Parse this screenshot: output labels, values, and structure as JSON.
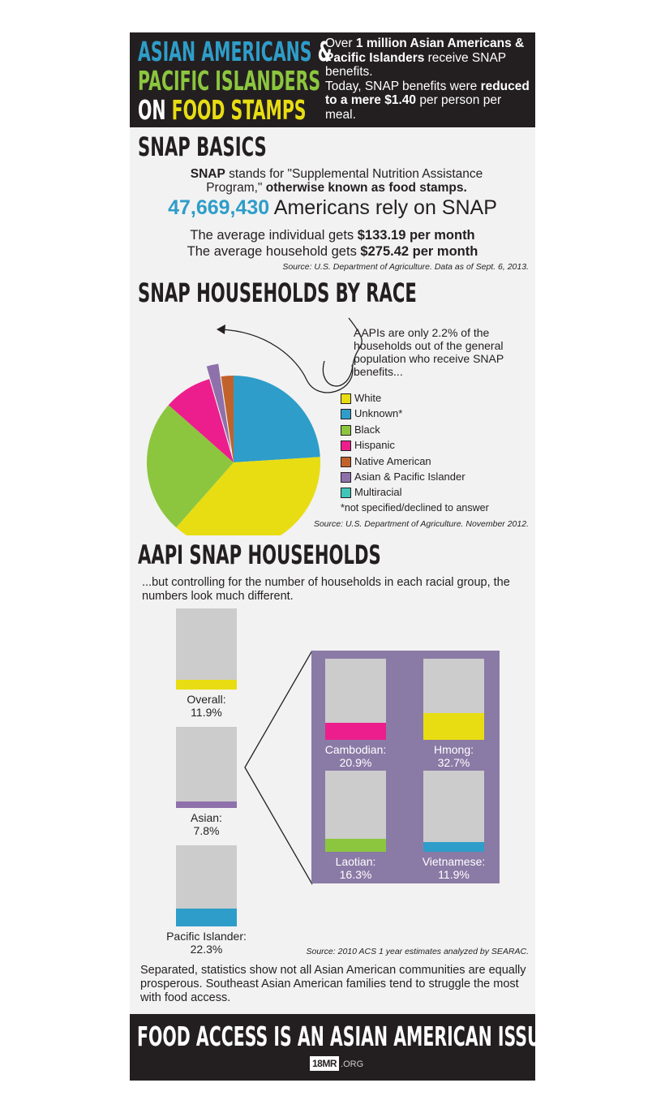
{
  "header": {
    "title_line1_a": "ASIAN AMERICANS",
    "title_line1_b": "&",
    "title_line2": "PACIFIC ISLANDERS",
    "title_line3_a": "ON",
    "title_line3_b": "FOOD STAMPS",
    "blurb_1": "Over ",
    "blurb_2": "1 million Asian Americans & Pacific Islanders",
    "blurb_3": " receive SNAP benefits.",
    "blurb_4": "Today, SNAP benefits were ",
    "blurb_5": "reduced to a mere $1.40",
    "blurb_6": " per person per meal."
  },
  "basics": {
    "title": "SNAP BASICS",
    "def_1": "SNAP",
    "def_2": " stands for \"Supplemental Nutrition Assistance Program,\" ",
    "def_3": "otherwise known as food stamps.",
    "count": "47,669,430",
    "count_text": " Americans rely on SNAP",
    "indiv_1": "The average individual gets ",
    "indiv_2": "$133.19 per month",
    "house_1": "The average household gets ",
    "house_2": "$275.42 per month",
    "source": "Source: U.S. Department of Agriculture. Data as of Sept. 6, 2013."
  },
  "race": {
    "title": "SNAP HOUSEHOLDS BY RACE",
    "annotation": "AAPIs are only 2.2% of the households out of the general population who receive SNAP benefits...",
    "footnote": "*not specified/declined to answer",
    "source": "Source: U.S. Department of Agriculture. November 2012."
  },
  "aapi": {
    "title": "AAPI SNAP HOUSEHOLDS",
    "intro": "...but controlling for the number of households in each racial group, the numbers look much different.",
    "source": "Source: 2010 ACS 1 year estimates analyzed by SEARAC.",
    "conclusion": "Separated, statistics show not all Asian American communities are equally prosperous. Southeast Asian American families tend to struggle the most with food access."
  },
  "footer": {
    "slogan": "FOOD ACCESS IS AN ASIAN AMERICAN ISSUE.",
    "logo_a": "18MR",
    "logo_b": ".ORG"
  },
  "colors": {
    "white": "#e8dd13",
    "unknown": "#2e9dc9",
    "black": "#8cc63e",
    "hispanic": "#ec1e8d",
    "native_american": "#c1622b",
    "asian_pacific_islander": "#8e71ab",
    "multiracial": "#3fc6b9",
    "accent_blue": "#2e9dc9",
    "accent_green": "#8cc63e",
    "accent_yellow": "#e8dd13",
    "panel_purple": "#8a7aa6"
  },
  "chart_data": [
    {
      "type": "pie",
      "title": "SNAP HOUSEHOLDS BY RACE",
      "slices": [
        {
          "label": "White",
          "value": 37.5,
          "color": "#e8dd13"
        },
        {
          "label": "Unknown*",
          "value": 24.0,
          "color": "#2e9dc9"
        },
        {
          "label": "Black",
          "value": 25.0,
          "color": "#8cc63e"
        },
        {
          "label": "Hispanic",
          "value": 9.0,
          "color": "#ec1e8d"
        },
        {
          "label": "Native American",
          "value": 2.3,
          "color": "#c1622b"
        },
        {
          "label": "Asian & Pacific Islander",
          "value": 2.2,
          "color": "#8e71ab",
          "exploded": true
        },
        {
          "label": "Multiracial",
          "value": 0.0,
          "color": "#3fc6b9"
        }
      ],
      "legend_placement": "right"
    },
    {
      "type": "bar",
      "ylim": [
        0,
        100
      ],
      "unit": "%",
      "bars": [
        {
          "label": "Overall:",
          "value": 11.9,
          "display": "11.9%",
          "color": "#e8dd13"
        },
        {
          "label": "Asian:",
          "value": 7.8,
          "display": "7.8%",
          "color": "#8e71ab"
        },
        {
          "label": "Pacific Islander:",
          "value": 22.3,
          "display": "22.3%",
          "color": "#2e9dc9"
        }
      ]
    },
    {
      "type": "bar",
      "ylim": [
        0,
        100
      ],
      "unit": "%",
      "bars": [
        {
          "label": "Cambodian:",
          "value": 20.9,
          "display": "20.9%",
          "color": "#ec1e8d"
        },
        {
          "label": "Hmong:",
          "value": 32.7,
          "display": "32.7%",
          "color": "#e8dd13"
        },
        {
          "label": "Laotian:",
          "value": 16.3,
          "display": "16.3%",
          "color": "#8cc63e"
        },
        {
          "label": "Vietnamese:",
          "value": 11.9,
          "display": "11.9%",
          "color": "#2e9dc9"
        }
      ]
    }
  ]
}
